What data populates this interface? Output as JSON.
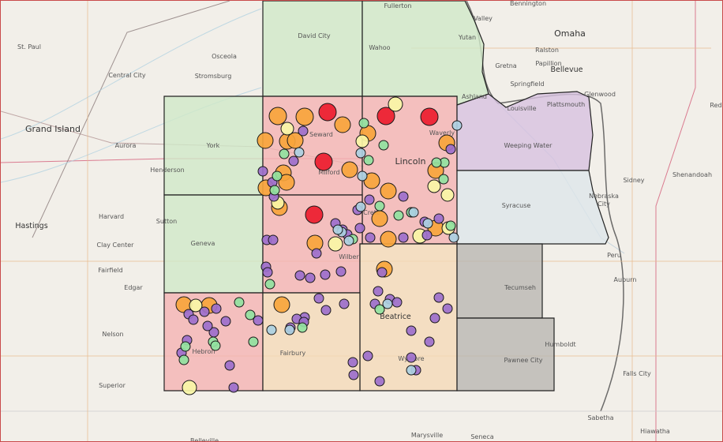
{
  "map": {
    "places": [
      {
        "name": "Fullerton",
        "size": "s"
      },
      {
        "name": "St. Paul",
        "size": "s"
      },
      {
        "name": "Osceola",
        "size": "s"
      },
      {
        "name": "Central City",
        "size": "s"
      },
      {
        "name": "Stromsburg",
        "size": "s"
      },
      {
        "name": "Grand Island",
        "size": "big"
      },
      {
        "name": "Aurora",
        "size": "s"
      },
      {
        "name": "York",
        "size": "s"
      },
      {
        "name": "Henderson",
        "size": "s"
      },
      {
        "name": "David City",
        "size": "s"
      },
      {
        "name": "Wahoo",
        "size": "s"
      },
      {
        "name": "Yutan",
        "size": "s"
      },
      {
        "name": "Valley",
        "size": "s"
      },
      {
        "name": "Bennington",
        "size": "s"
      },
      {
        "name": "Omaha",
        "size": "big"
      },
      {
        "name": "Ralston",
        "size": "s"
      },
      {
        "name": "Gretna",
        "size": "s"
      },
      {
        "name": "Papillion",
        "size": "s"
      },
      {
        "name": "Bellevue",
        "size": "med"
      },
      {
        "name": "Springfield",
        "size": "s"
      },
      {
        "name": "Ashland",
        "size": "s"
      },
      {
        "name": "Louisville",
        "size": "s"
      },
      {
        "name": "Plattsmouth",
        "size": "s"
      },
      {
        "name": "Glenwood",
        "size": "s"
      },
      {
        "name": "Red",
        "size": "s"
      },
      {
        "name": "Weeping Water",
        "size": "s"
      },
      {
        "name": "Seward",
        "size": "s"
      },
      {
        "name": "Milford",
        "size": "s"
      },
      {
        "name": "Lincoln",
        "size": "big"
      },
      {
        "name": "Waverly",
        "size": "s"
      },
      {
        "name": "Crete",
        "size": "s"
      },
      {
        "name": "Sidney",
        "size": "s"
      },
      {
        "name": "Shenandoah",
        "size": "s"
      },
      {
        "name": "Nebraska",
        "size": "s"
      },
      {
        "name": "City",
        "size": "s"
      },
      {
        "name": "Syracuse",
        "size": "s"
      },
      {
        "name": "Harvard",
        "size": "s"
      },
      {
        "name": "Sutton",
        "size": "s"
      },
      {
        "name": "Hastings",
        "size": "med"
      },
      {
        "name": "Geneva",
        "size": "s"
      },
      {
        "name": "Clay Center",
        "size": "s"
      },
      {
        "name": "Fairfield",
        "size": "s"
      },
      {
        "name": "Edgar",
        "size": "s"
      },
      {
        "name": "Wilber",
        "size": "s"
      },
      {
        "name": "Peru",
        "size": "s"
      },
      {
        "name": "Auburn",
        "size": "s"
      },
      {
        "name": "Tecumseh",
        "size": "s"
      },
      {
        "name": "Beatrice",
        "size": "med"
      },
      {
        "name": "Nelson",
        "size": "s"
      },
      {
        "name": "Hebron",
        "size": "s"
      },
      {
        "name": "Fairbury",
        "size": "s"
      },
      {
        "name": "Humboldt",
        "size": "s"
      },
      {
        "name": "Wymore",
        "size": "s"
      },
      {
        "name": "Pawnee City",
        "size": "s"
      },
      {
        "name": "Falls City",
        "size": "s"
      },
      {
        "name": "Superior",
        "size": "s"
      },
      {
        "name": "Sabetha",
        "size": "s"
      },
      {
        "name": "Hiawatha",
        "size": "s"
      },
      {
        "name": "Marysville",
        "size": "s"
      },
      {
        "name": "Seneca",
        "size": "s"
      },
      {
        "name": "Belleville",
        "size": "s"
      }
    ],
    "region_colors": {
      "green": "#cfe9c8",
      "pink": "#f4b3b3",
      "purple": "#d7c2e0",
      "bluegray": "#dde6ea",
      "peach": "#f4d9b8",
      "gray": "#b9b6b2"
    },
    "marker_colors": {
      "red": "#ec1c2e",
      "orange": "#f7a53c",
      "yellow": "#f9f6a6",
      "green": "#90e2a0",
      "lightblue": "#abd0e2",
      "purple": "#9c6fcc"
    }
  }
}
